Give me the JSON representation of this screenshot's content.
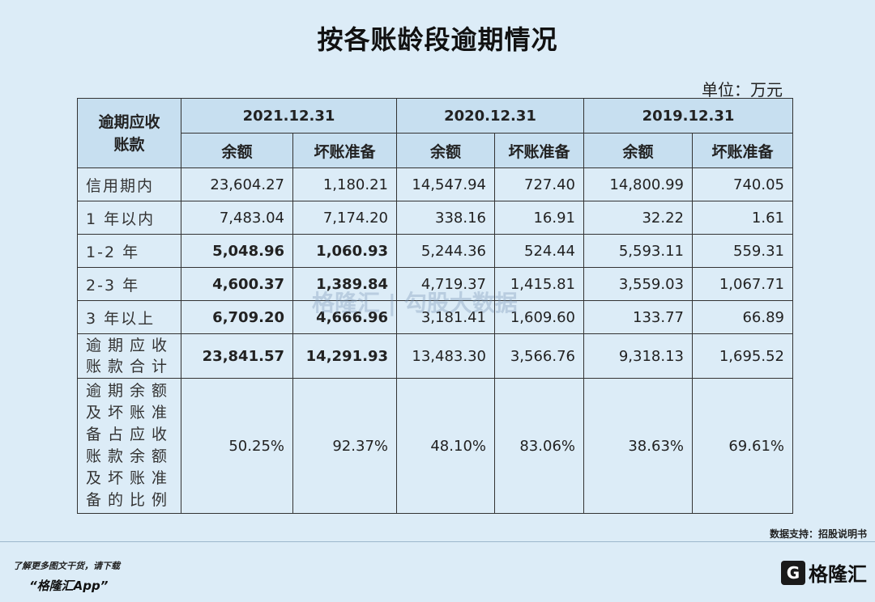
{
  "title": "按各账龄段逾期情况",
  "unit": "单位：万元",
  "header": {
    "corner": [
      "逾期应收",
      "账款"
    ],
    "years": [
      "2021.12.31",
      "2020.12.31",
      "2019.12.31"
    ],
    "sub": [
      "余额",
      "坏账准备",
      "余额",
      "坏账准备",
      "余额",
      "坏账准备"
    ]
  },
  "rows": [
    {
      "label": "信用期内",
      "values": [
        "23,604.27",
        "1,180.21",
        "14,547.94",
        "727.40",
        "14,800.99",
        "740.05"
      ]
    },
    {
      "label": "1 年以内",
      "values": [
        "7,483.04",
        "7,174.20",
        "338.16",
        "16.91",
        "32.22",
        "1.61"
      ]
    },
    {
      "label": "1-2 年",
      "values": [
        "5,048.96",
        "1,060.93",
        "5,244.36",
        "524.44",
        "5,593.11",
        "559.31"
      ]
    },
    {
      "label": "2-3 年",
      "values": [
        "4,600.37",
        "1,389.84",
        "4,719.37",
        "1,415.81",
        "3,559.03",
        "1,067.71"
      ]
    },
    {
      "label": "3 年以上",
      "values": [
        "6,709.20",
        "4,666.96",
        "3,181.41",
        "1,609.60",
        "133.77",
        "66.89"
      ]
    }
  ],
  "total": {
    "label": [
      "逾期应收",
      "账款合计"
    ],
    "values": [
      "23,841.57",
      "14,291.93",
      "13,483.30",
      "3,566.76",
      "9,318.13",
      "1,695.52"
    ]
  },
  "ratio": {
    "label": [
      "逾期余额",
      "及坏账准",
      "备占应收",
      "账款余额",
      "及坏账准",
      "备的比例"
    ],
    "values": [
      "50.25%",
      "92.37%",
      "48.10%",
      "83.06%",
      "38.63%",
      "69.61%"
    ]
  },
  "watermark": "格隆汇 | 勾股大数据",
  "source": "数据支持：招股说明书",
  "promo": {
    "line1": "了解更多图文干货，请下载",
    "line2": "“格隆汇App”"
  },
  "brand": {
    "mark": "G",
    "name": "格隆汇"
  }
}
